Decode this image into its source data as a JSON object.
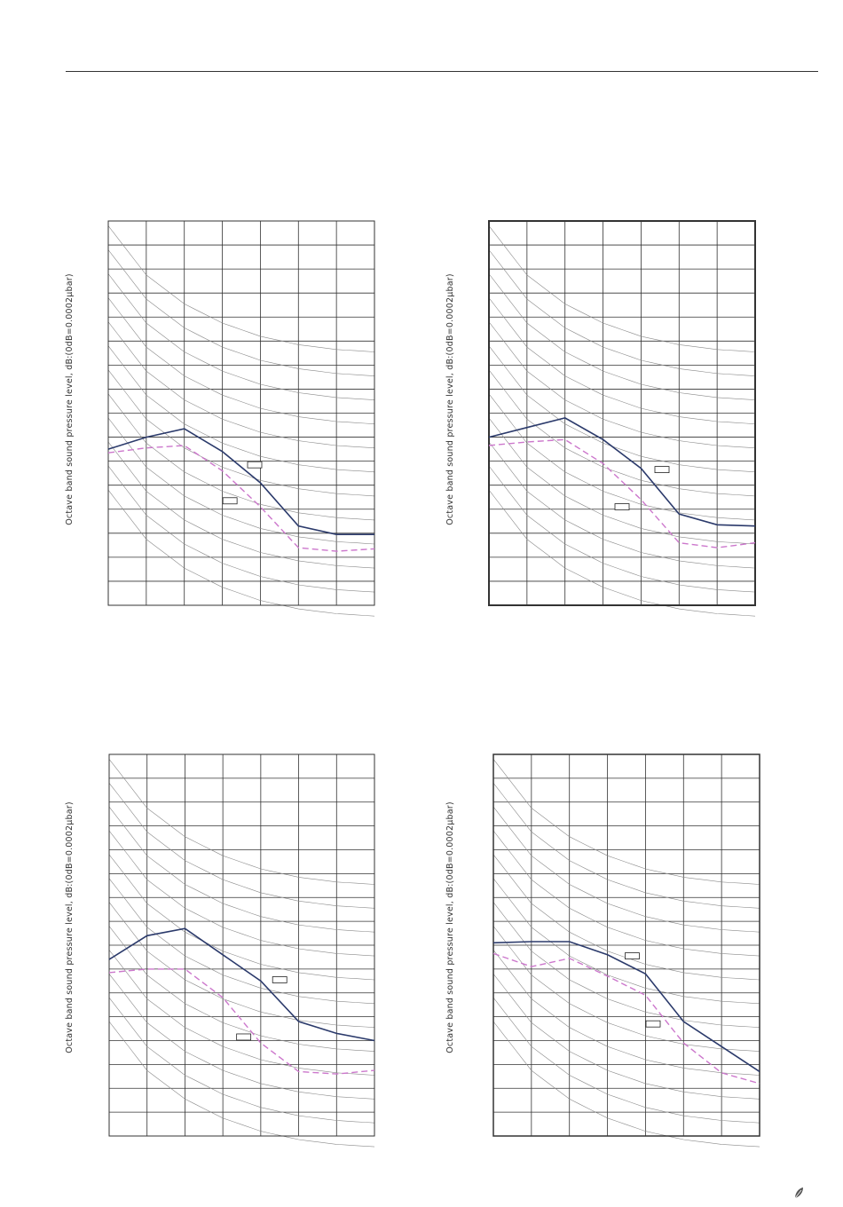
{
  "colors": {
    "series_solid": "#2b3a6b",
    "series_dashed": "#cc77cc",
    "grid": "#333333",
    "nc_curves": "#8a8a8a"
  },
  "icons": {
    "corner_mark": "leaf-icon"
  },
  "chart_data": [
    {
      "type": "line",
      "ylabel": "Octave band sound pressure level, dB:(0dB=0.0002μbar)",
      "x_divisions": 7,
      "ylim": [
        0,
        16
      ],
      "nc_curves": 12,
      "series": [
        {
          "style": "solid",
          "values": [
            6.5,
            7.0,
            7.35,
            6.4,
            5.1,
            3.3,
            2.95,
            2.95
          ]
        },
        {
          "style": "dashed",
          "values": [
            6.35,
            6.55,
            6.65,
            5.6,
            4.1,
            2.4,
            2.25,
            2.35
          ]
        }
      ],
      "label_boxes": [
        {
          "x": 3.85,
          "y": 5.85
        },
        {
          "x": 3.2,
          "y": 4.35
        }
      ]
    },
    {
      "type": "line",
      "ylabel": "Octave band sound pressure level, dB:(0dB=0.0002μbar)",
      "x_divisions": 7,
      "ylim": [
        0,
        16
      ],
      "nc_curves": 12,
      "series": [
        {
          "style": "solid",
          "values": [
            7.0,
            7.4,
            7.8,
            6.9,
            5.7,
            3.8,
            3.35,
            3.3
          ]
        },
        {
          "style": "dashed",
          "values": [
            6.65,
            6.8,
            6.9,
            5.9,
            4.4,
            2.6,
            2.4,
            2.6
          ]
        }
      ],
      "label_boxes": [
        {
          "x": 4.55,
          "y": 5.65
        },
        {
          "x": 3.5,
          "y": 4.1
        }
      ]
    },
    {
      "type": "line",
      "ylabel": "Octave band sound pressure level, dB:(0dB=0.0002μbar)",
      "x_divisions": 7,
      "ylim": [
        0,
        16
      ],
      "nc_curves": 12,
      "series": [
        {
          "style": "solid",
          "values": [
            7.4,
            8.4,
            8.7,
            7.6,
            6.5,
            4.8,
            4.3,
            4.0
          ]
        },
        {
          "style": "dashed",
          "values": [
            6.85,
            7.0,
            7.0,
            5.8,
            3.9,
            2.7,
            2.6,
            2.75
          ]
        }
      ],
      "label_boxes": [
        {
          "x": 4.5,
          "y": 6.55
        },
        {
          "x": 3.55,
          "y": 4.15
        }
      ]
    },
    {
      "type": "line",
      "ylabel": "Octave band sound pressure level, dB:(0dB=0.0002μbar)",
      "x_divisions": 7,
      "ylim": [
        0,
        16
      ],
      "nc_curves": 12,
      "series": [
        {
          "style": "solid",
          "values": [
            8.1,
            8.15,
            8.15,
            7.6,
            6.8,
            4.8,
            3.75,
            2.7
          ]
        },
        {
          "style": "dashed",
          "values": [
            7.65,
            7.1,
            7.45,
            6.7,
            5.9,
            3.9,
            2.65,
            2.2
          ]
        }
      ],
      "label_boxes": [
        {
          "x": 3.65,
          "y": 7.55
        },
        {
          "x": 4.2,
          "y": 4.7
        }
      ]
    }
  ]
}
